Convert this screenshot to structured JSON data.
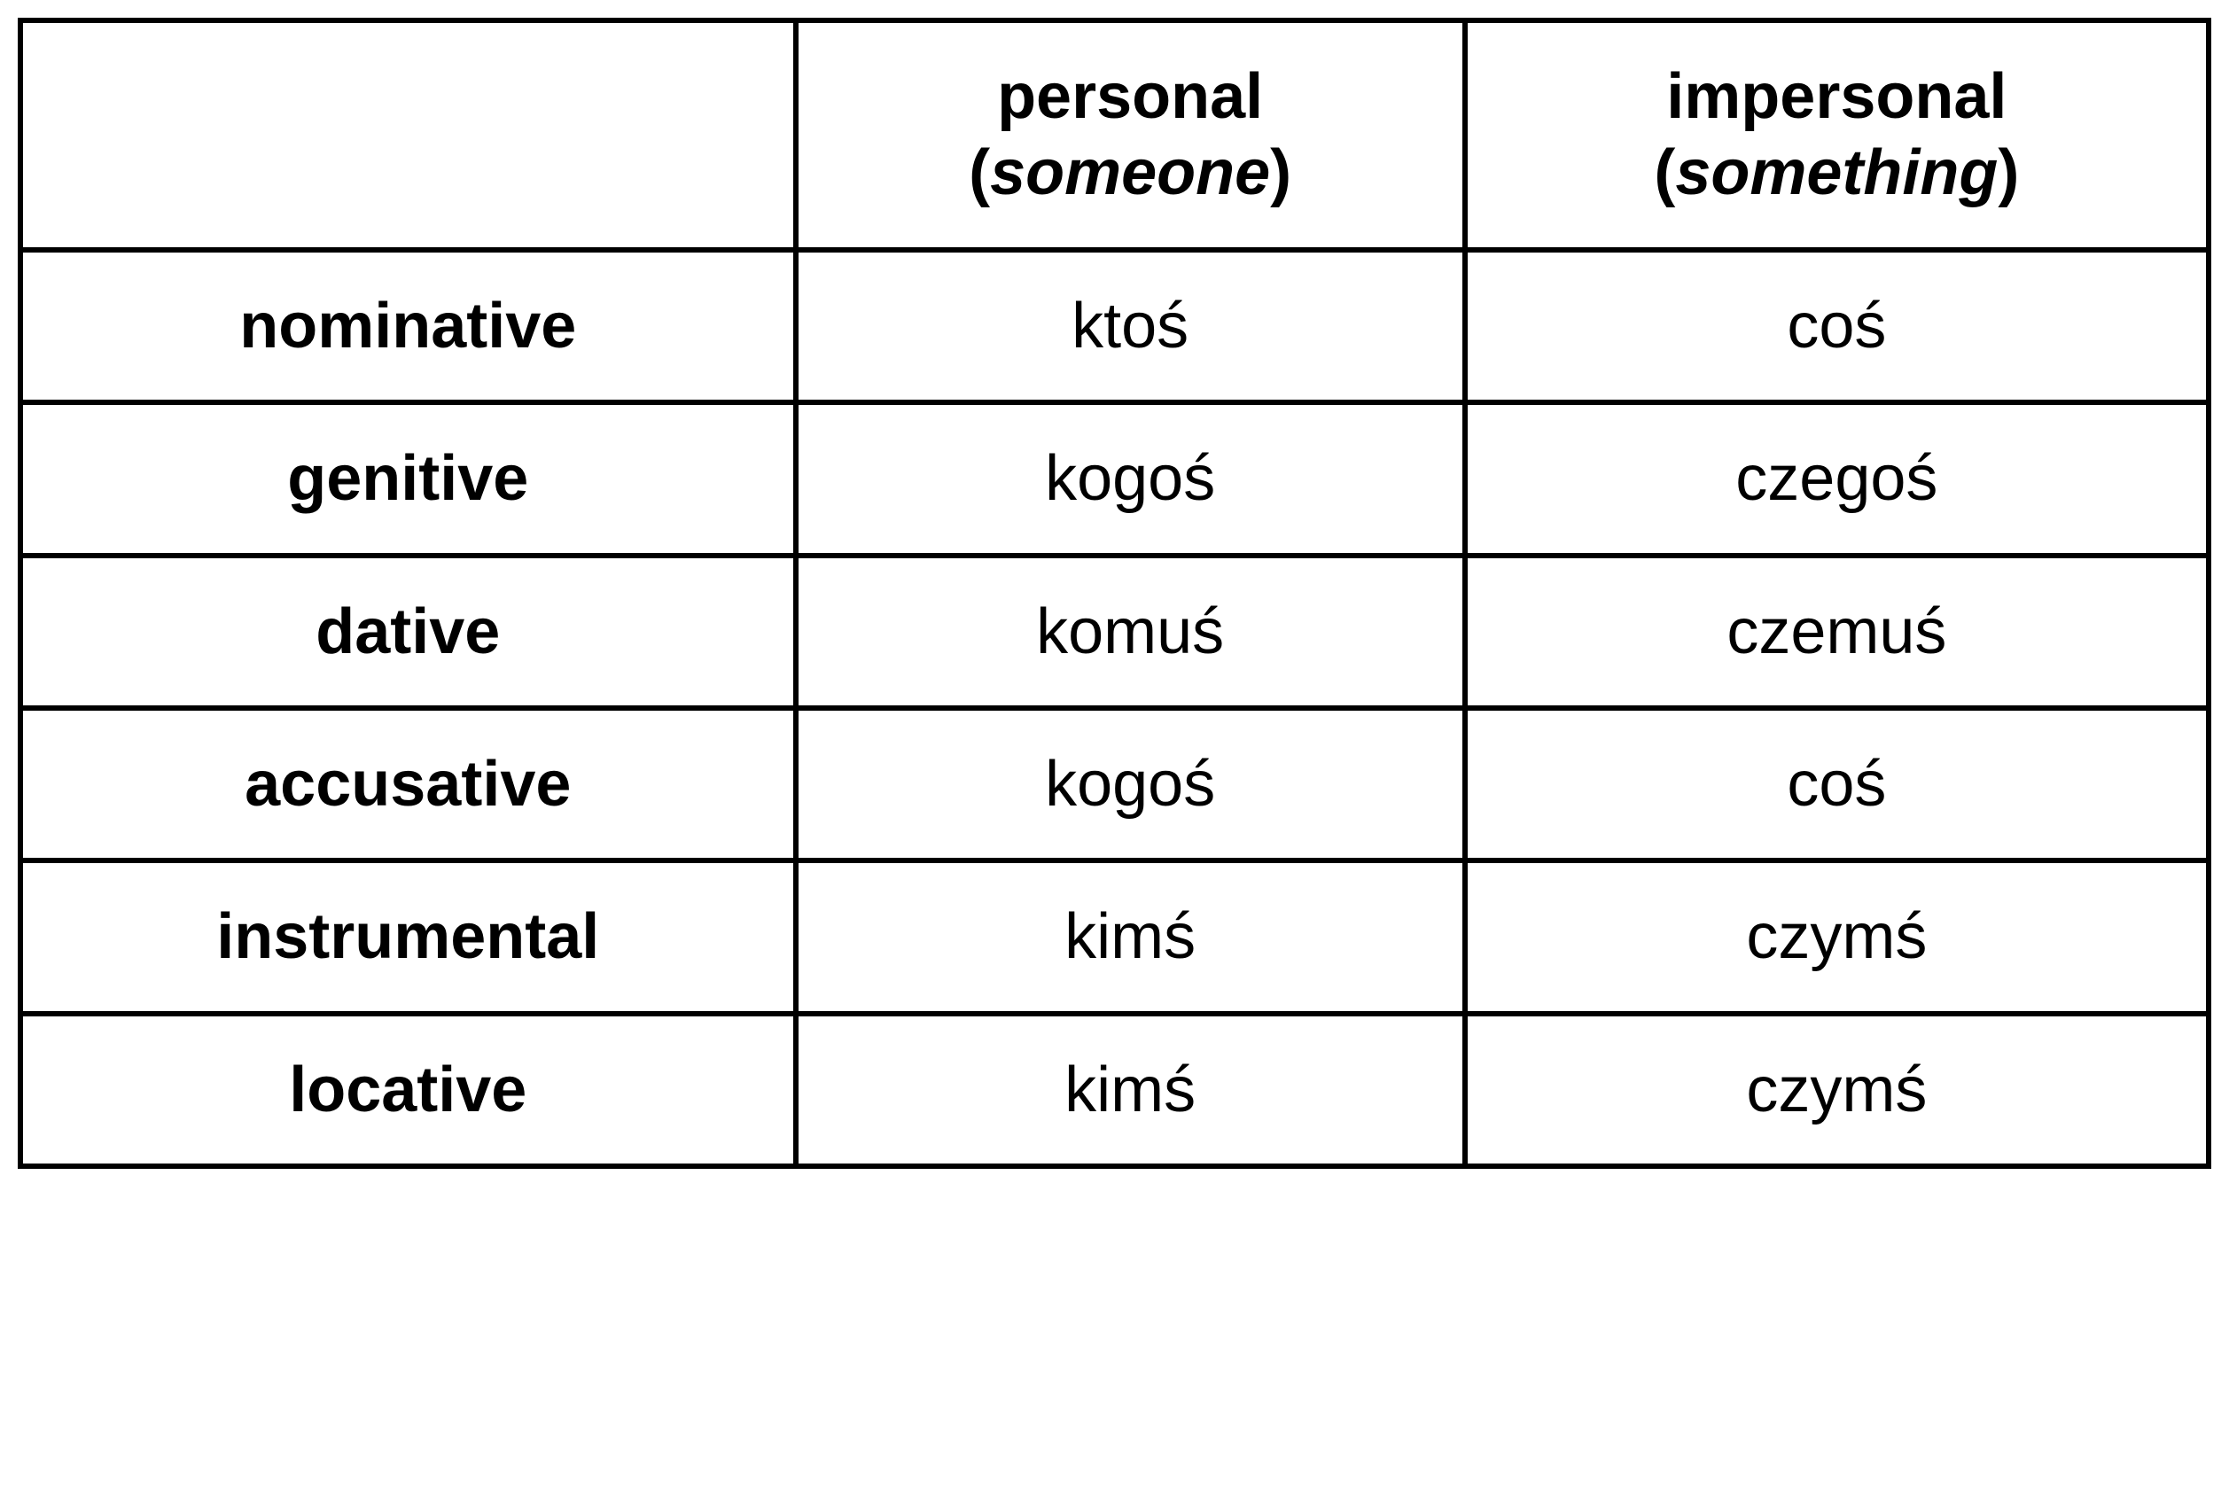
{
  "table": {
    "type": "table",
    "background_color": "#ffffff",
    "border_color": "#000000",
    "border_width": 6,
    "font_family": "Arial, Helvetica, sans-serif",
    "header_fontsize": 72,
    "cell_fontsize": 72,
    "columns": [
      {
        "key": "case",
        "label": "",
        "width": "33%"
      },
      {
        "key": "personal",
        "label_main": "personal",
        "label_sub": "someone",
        "width": "33%"
      },
      {
        "key": "impersonal",
        "label_main": "impersonal",
        "label_sub": "something",
        "width": "34%"
      }
    ],
    "rows": [
      {
        "case": "nominative",
        "personal": "ktoś",
        "impersonal": "coś"
      },
      {
        "case": "genitive",
        "personal": "kogoś",
        "impersonal": "czegoś"
      },
      {
        "case": "dative",
        "personal": "komuś",
        "impersonal": "czemuś"
      },
      {
        "case": "accusative",
        "personal": "kogoś",
        "impersonal": "coś"
      },
      {
        "case": "instrumental",
        "personal": "kimś",
        "impersonal": "czymś"
      },
      {
        "case": "locative",
        "personal": "kimś",
        "impersonal": "czymś"
      }
    ]
  }
}
